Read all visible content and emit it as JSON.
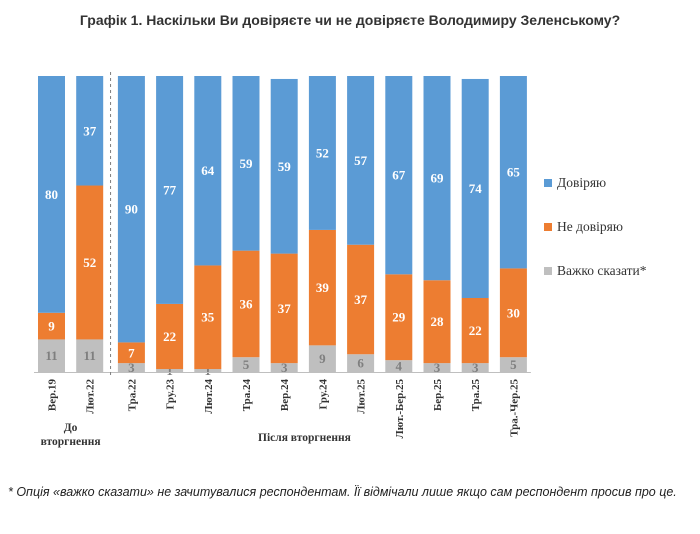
{
  "chart_data": {
    "type": "bar",
    "stacked": true,
    "title": "Графік 1. Наскільки Ви довіряєте чи не довіряєте Володимиру Зеленському?",
    "categories": [
      "Вер.19",
      "Лют.22",
      "Тра.22",
      "Гру.23",
      "Лют.24",
      "Тра.24",
      "Вер.24",
      "Гру.24",
      "Лют.25",
      "Лют.-Бер.25",
      "Бер.25",
      "Тра.25",
      "Тра.-Чер.25"
    ],
    "series": [
      {
        "name": "Важко сказати*",
        "color": "#bfbfbf",
        "values": [
          11,
          11,
          3,
          1,
          1,
          5,
          3,
          9,
          6,
          4,
          3,
          3,
          5
        ]
      },
      {
        "name": "Не довіряю",
        "color": "#ed7d31",
        "values": [
          9,
          52,
          7,
          22,
          35,
          36,
          37,
          39,
          37,
          29,
          28,
          22,
          30
        ]
      },
      {
        "name": "Довіряю",
        "color": "#5b9bd5",
        "values": [
          80,
          37,
          90,
          77,
          64,
          59,
          59,
          52,
          57,
          67,
          69,
          74,
          65
        ]
      }
    ],
    "value_label_colors": [
      "#7f7f7f",
      "#ffffff",
      "#ffffff"
    ],
    "ylim": [
      0,
      100
    ],
    "legend_position": "right",
    "groups": [
      {
        "label": "До вторгнення",
        "categories": [
          "Вер.19",
          "Лют.22"
        ]
      },
      {
        "label": "Після вторгнення",
        "categories": [
          "Тра.22",
          "Гру.23",
          "Лют.24",
          "Тра.24",
          "Вер.24",
          "Гру.24",
          "Лют.25",
          "Лют.-Бер.25",
          "Бер.25",
          "Тра.25",
          "Тра.-Чер.25"
        ]
      }
    ],
    "legend": [
      "Довіряю",
      "Не довіряю",
      "Важко сказати*"
    ]
  },
  "footnote": "* Опція «важко сказати» не зачитувалися респондентам. Її відмічали лише якщо сам респондент просив про це."
}
